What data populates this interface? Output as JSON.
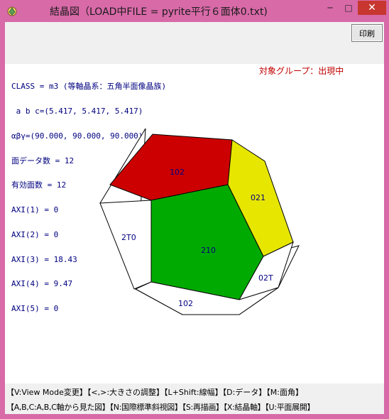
{
  "window": {
    "title": "結晶図（LOAD中FILE = pyrite平行６面体0.txt)",
    "app_icon": "crystal-app-icon",
    "minimize_icon": "minimize-icon",
    "maximize_icon": "maximize-icon",
    "close_icon": "close-icon",
    "minimize_glyph": "─",
    "maximize_glyph": "□",
    "close_glyph": "✕"
  },
  "toolbar": {
    "print_label": "印刷"
  },
  "info": {
    "lines": [
      "CLASS = m3 (等軸晶系：五角半面像晶族)",
      " a b c=(5.417, 5.417, 5.417)",
      "αβγ=(90.000, 90.000, 90.000)",
      "面データ数 = 12",
      "有効面数 = 12",
      "AXI(1) = 0",
      "AXI(2) = 0",
      "AXI(3) = 18.43",
      "AXI(4) = 9.47",
      "AXI(5) = 0"
    ],
    "target_group": "対象グループ：出現中"
  },
  "crystal": {
    "faces": [
      {
        "label": "102",
        "color": "#cc0000"
      },
      {
        "label": "021",
        "color": "#e6e600"
      },
      {
        "label": "210",
        "color": "#00aa00"
      },
      {
        "label": "2T0",
        "color": "#ffffff"
      },
      {
        "label": "02T",
        "color": "#ffffff"
      },
      {
        "label": "102",
        "color": "#ffffff"
      }
    ],
    "label_color": "#000080",
    "edge_color": "#000000"
  },
  "status": {
    "line1": "【V:View Mode変更】【<,>:大きさの調整】【L+Shift:線幅】【D:データ】【M:面角】",
    "line2": "【A,B,C:A,B,C軸から見た図】【N:国際標準斜視図】【S:再描画】【X:結晶軸】【U:平面展開】"
  },
  "colors": {
    "frame": "#d86aa8",
    "toolbar_bg": "#f0f0f0",
    "canvas_bg": "#ffffff",
    "info_text": "#000080",
    "target_text": "#c00000",
    "close_bg": "#c7372f"
  }
}
